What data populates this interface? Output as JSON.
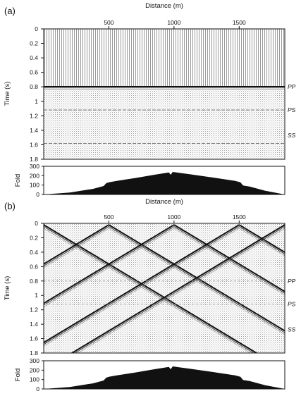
{
  "figure": {
    "panels": [
      {
        "label": "(a)",
        "x_title": "Distance (m)",
        "x_ticks": [
          500,
          1000,
          1500
        ],
        "y_title": "Time (s)",
        "y_ticks": [
          0,
          0.2,
          0.4,
          0.6,
          0.8,
          1.0,
          1.2,
          1.4,
          1.6,
          1.8
        ],
        "phase_labels": [
          {
            "text": "PP",
            "time": 0.8
          },
          {
            "text": "PS",
            "time": 1.12
          },
          {
            "text": "SS",
            "time": 1.47
          }
        ],
        "fold_title": "Fold",
        "fold_ticks": [
          0,
          100,
          200,
          300
        ]
      },
      {
        "label": "(b)",
        "x_title": "Distance (m)",
        "x_ticks": [
          500,
          1000,
          1500
        ],
        "y_title": "Time (s)",
        "y_ticks": [
          0,
          0.2,
          0.4,
          0.6,
          0.8,
          1.0,
          1.2,
          1.4,
          1.6,
          1.8
        ],
        "phase_labels": [
          {
            "text": "PP",
            "time": 0.8
          },
          {
            "text": "PS",
            "time": 1.12
          },
          {
            "text": "SS",
            "time": 1.47
          }
        ],
        "fold_title": "Fold",
        "fold_ticks": [
          0,
          100,
          200,
          300
        ]
      }
    ],
    "x_range": [
      0,
      1850
    ],
    "time_range": [
      0,
      1.8
    ],
    "fold_range": [
      0,
      300
    ],
    "fold_profile": [
      [
        0,
        0
      ],
      [
        200,
        20
      ],
      [
        380,
        60
      ],
      [
        460,
        90
      ],
      [
        480,
        120
      ],
      [
        500,
        130
      ],
      [
        560,
        145
      ],
      [
        700,
        175
      ],
      [
        850,
        210
      ],
      [
        960,
        235
      ],
      [
        975,
        210
      ],
      [
        990,
        240
      ],
      [
        1120,
        215
      ],
      [
        1300,
        180
      ],
      [
        1470,
        145
      ],
      [
        1510,
        130
      ],
      [
        1530,
        95
      ],
      [
        1580,
        85
      ],
      [
        1700,
        40
      ],
      [
        1850,
        0
      ]
    ],
    "reflections_a": [
      {
        "time": 0.8,
        "strength": "strong"
      },
      {
        "time": 1.12,
        "strength": "faint"
      },
      {
        "time": 1.58,
        "strength": "faint"
      }
    ],
    "direct_wave_sources_b": [
      0,
      500,
      1000,
      1500,
      1850
    ],
    "colors": {
      "ink": "#111111",
      "trace": "#8a8a8a",
      "background": "#ffffff"
    }
  }
}
